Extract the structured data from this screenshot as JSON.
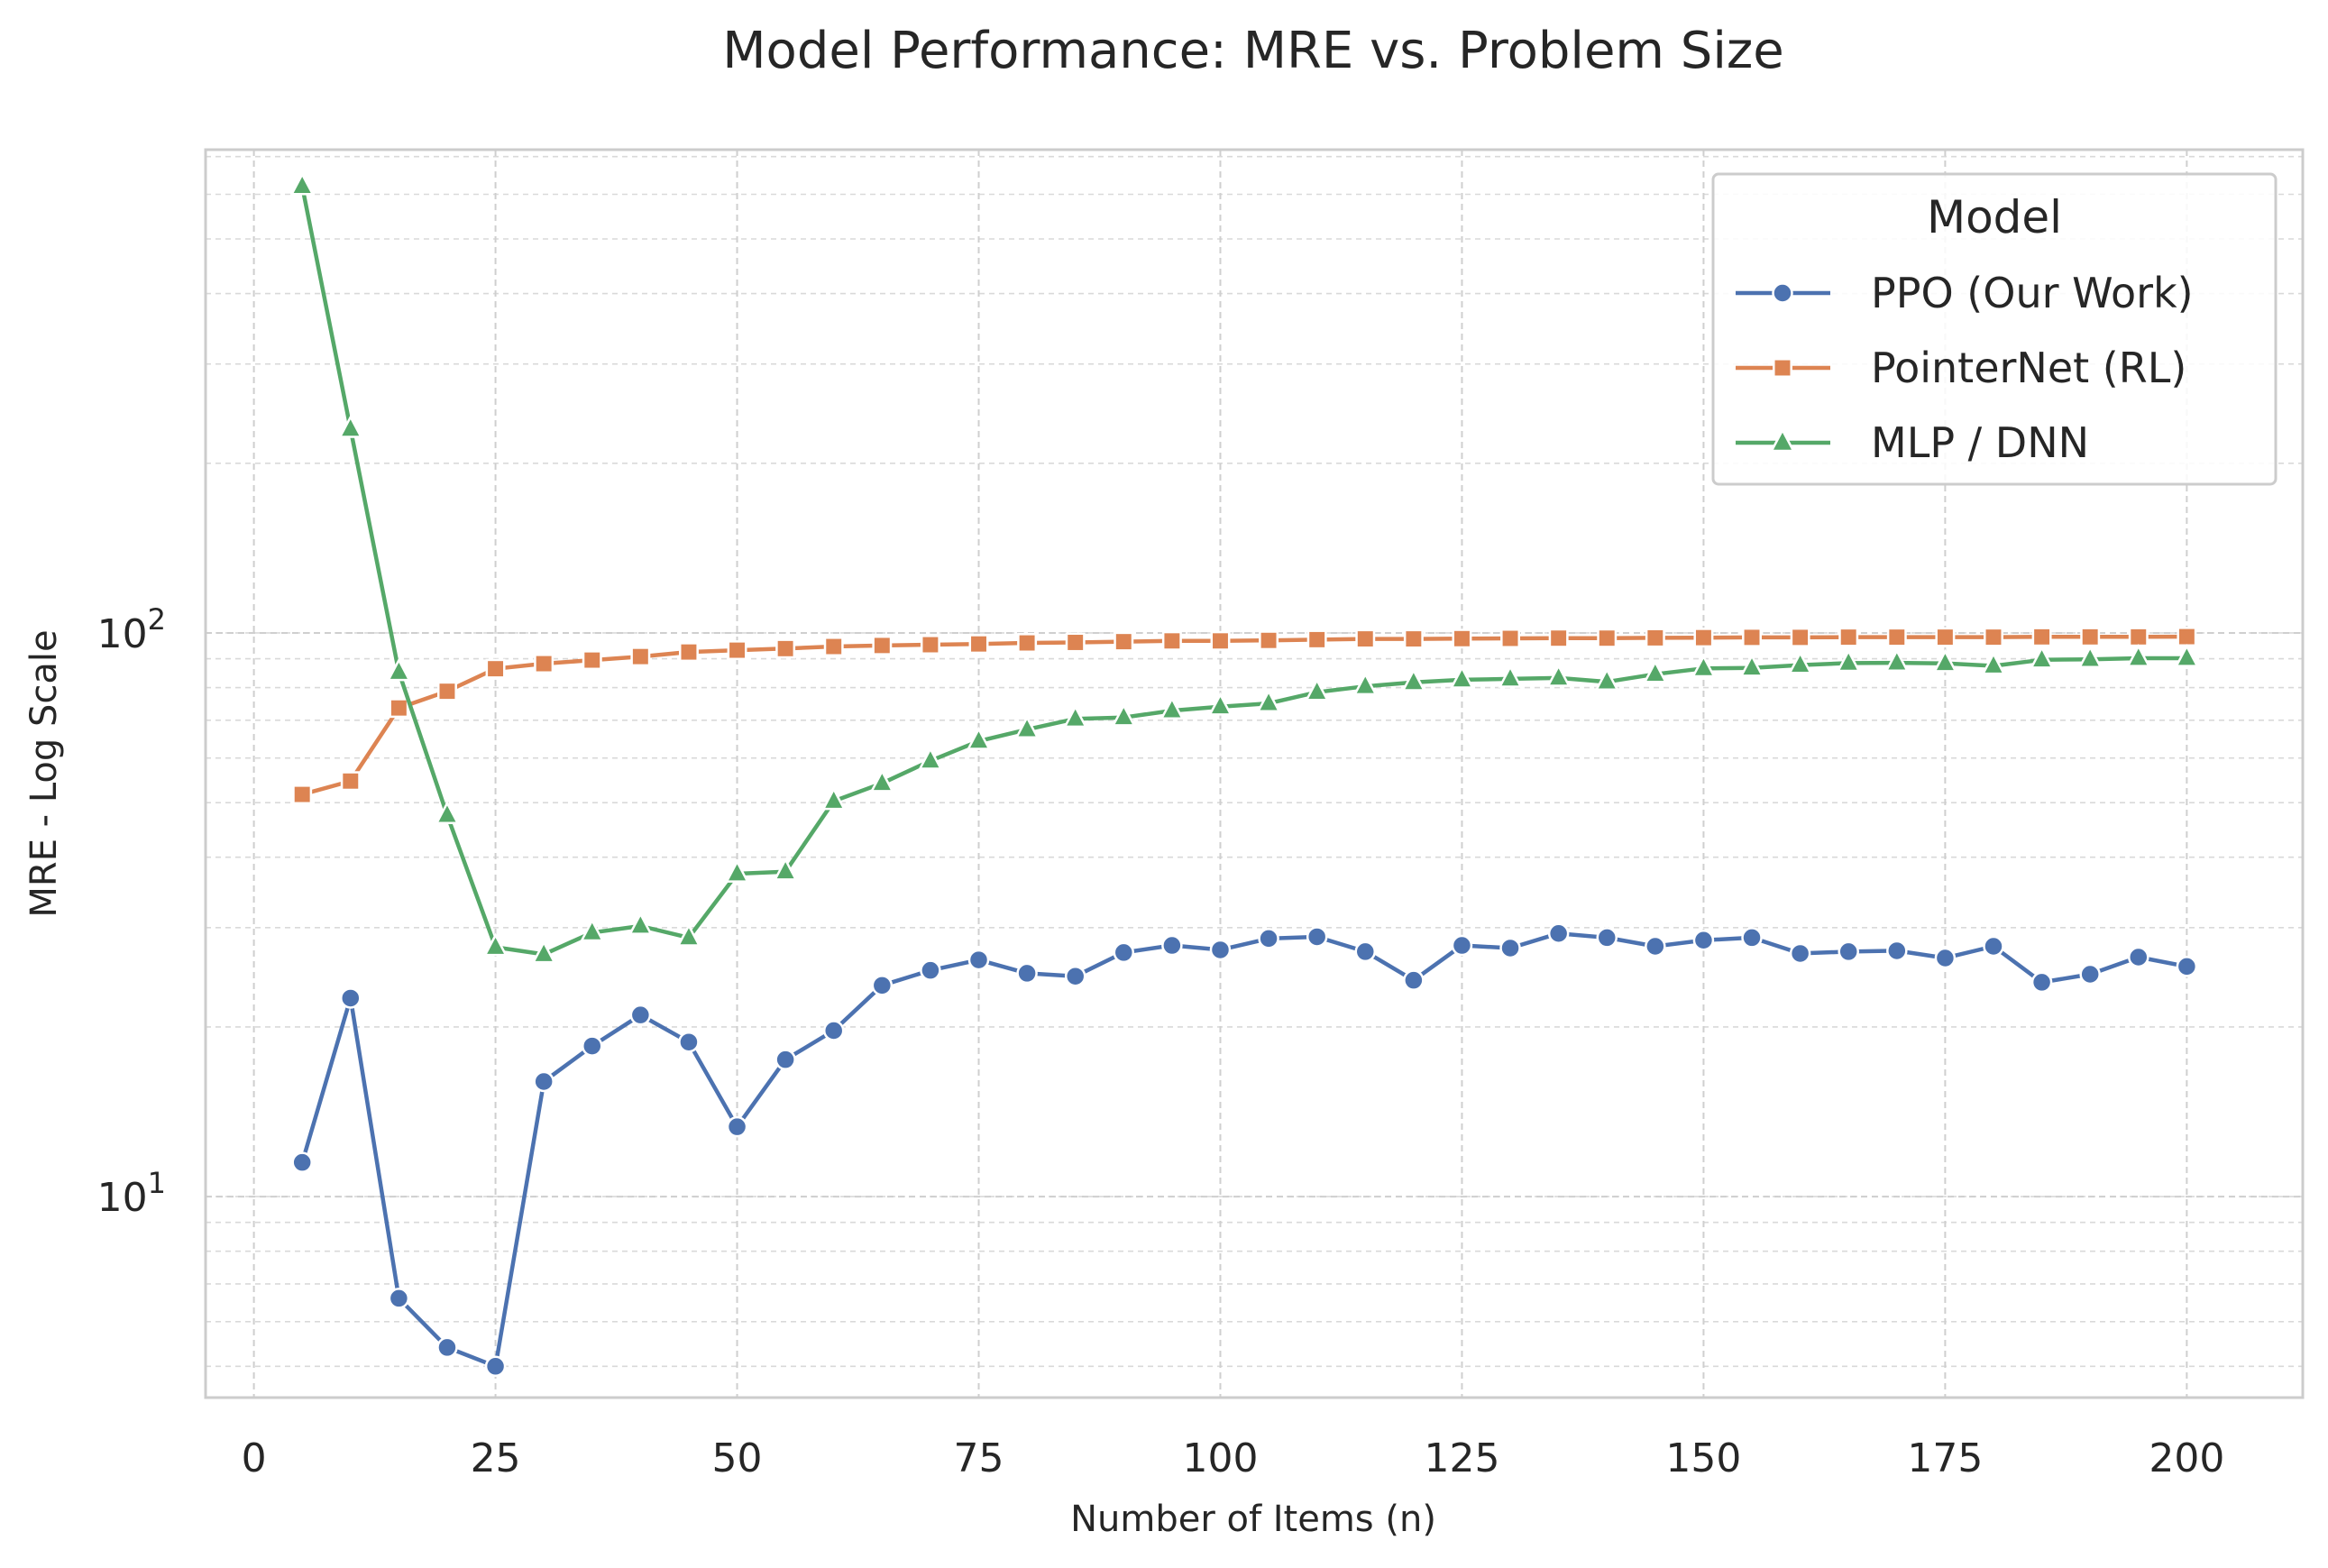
{
  "chart_data": {
    "type": "line",
    "title": "Model Performance: MRE vs. Problem Size",
    "xlabel": "Number of Items (n)",
    "ylabel": "MRE - Log Scale",
    "yscale": "log",
    "xlim": [
      -5,
      212
    ],
    "ylim": [
      4.4,
      720
    ],
    "grid": true,
    "grid_style": "dashed",
    "legend": {
      "title": "Model",
      "position": "top-right"
    },
    "x_ticks": [
      {
        "value": 0,
        "label": "0"
      },
      {
        "value": 25,
        "label": "25"
      },
      {
        "value": 50,
        "label": "50"
      },
      {
        "value": 75,
        "label": "75"
      },
      {
        "value": 100,
        "label": "100"
      },
      {
        "value": 125,
        "label": "125"
      },
      {
        "value": 150,
        "label": "150"
      },
      {
        "value": 175,
        "label": "175"
      },
      {
        "value": 200,
        "label": "200"
      }
    ],
    "y_ticks": [
      {
        "value": 10,
        "base": "10",
        "exp": "1"
      },
      {
        "value": 100,
        "base": "10",
        "exp": "2"
      }
    ],
    "x": [
      5,
      10,
      15,
      20,
      25,
      30,
      35,
      40,
      45,
      50,
      55,
      60,
      65,
      70,
      75,
      80,
      85,
      90,
      95,
      100,
      105,
      110,
      115,
      120,
      125,
      130,
      135,
      140,
      145,
      150,
      155,
      160,
      165,
      170,
      175,
      180,
      185,
      190,
      195,
      200
    ],
    "series": [
      {
        "name": "PPO (Our Work)",
        "color": "#4c72b0",
        "marker": "circle",
        "values": [
          11.5,
          22.5,
          6.6,
          5.4,
          5.0,
          16.0,
          18.5,
          21.0,
          18.8,
          13.3,
          17.5,
          19.7,
          23.7,
          25.2,
          26.3,
          24.9,
          24.6,
          27.1,
          27.9,
          27.4,
          28.7,
          28.9,
          27.2,
          24.2,
          27.9,
          27.6,
          29.3,
          28.8,
          27.8,
          28.5,
          28.8,
          27.0,
          27.2,
          27.3,
          26.5,
          27.8,
          24.0,
          24.8,
          26.6,
          25.6
        ]
      },
      {
        "name": "PointerNet (RL)",
        "color": "#dd8452",
        "marker": "square",
        "values": [
          51.7,
          54.6,
          73.6,
          78.8,
          86.4,
          88.2,
          89.5,
          90.8,
          92.5,
          93.2,
          93.8,
          94.6,
          95.0,
          95.3,
          95.6,
          96.0,
          96.2,
          96.5,
          96.8,
          96.8,
          97.0,
          97.3,
          97.6,
          97.6,
          97.7,
          97.8,
          97.9,
          97.9,
          98.0,
          98.1,
          98.2,
          98.2,
          98.3,
          98.3,
          98.3,
          98.3,
          98.4,
          98.4,
          98.4,
          98.5
        ]
      },
      {
        "name": "MLP / DNN",
        "color": "#55a868",
        "marker": "triangle",
        "values": [
          620,
          230,
          85.2,
          47.5,
          27.7,
          26.9,
          29.4,
          30.2,
          28.8,
          37.4,
          37.7,
          50.3,
          54.1,
          59.3,
          64.3,
          67.4,
          70.4,
          70.8,
          72.8,
          74.0,
          75.0,
          78.5,
          80.4,
          81.7,
          82.6,
          82.9,
          83.2,
          81.9,
          84.5,
          86.5,
          86.7,
          87.7,
          88.4,
          88.5,
          88.3,
          87.4,
          89.6,
          89.8,
          90.2,
          90.2
        ]
      }
    ]
  }
}
